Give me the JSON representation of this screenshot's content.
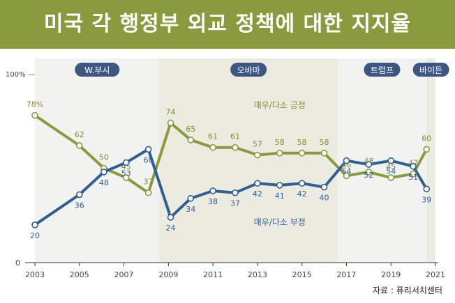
{
  "title": "미국 각 행정부 외교 정책에 대한 지지율",
  "source": "자료 : 퓨리서치센터",
  "colors": {
    "title_bg": "#8a9a3e",
    "approve": "#8a9a3e",
    "approve_label": "#8b8a3a",
    "disapprove": "#2f5f94",
    "disapprove_label": "#2f5f94",
    "admin_badge": "#3f5683",
    "band_light": "#f2f2f0",
    "band_olive": "#ecebdf",
    "axis": "#333333"
  },
  "chart_data": {
    "type": "line",
    "ylim": [
      0,
      100
    ],
    "xlim": [
      2003,
      2021
    ],
    "y_ticks": [
      {
        "value": 0,
        "label": "0"
      },
      {
        "value": 100,
        "label": "100% —"
      }
    ],
    "x_ticks": [
      {
        "value": 2003,
        "label": "2003"
      },
      {
        "value": 2005,
        "label": "2005"
      },
      {
        "value": 2007,
        "label": "2007"
      },
      {
        "value": 2009,
        "label": "2009"
      },
      {
        "value": 2011,
        "label": "2011"
      },
      {
        "value": 2013,
        "label": "2013"
      },
      {
        "value": 2015,
        "label": "2015"
      },
      {
        "value": 2017,
        "label": "2017"
      },
      {
        "value": 2019,
        "label": "2019"
      },
      {
        "value": 2021,
        "label": "2021"
      }
    ],
    "administrations": [
      {
        "name": "W.부시",
        "start": 2003,
        "end": 2008.6,
        "shade": "light"
      },
      {
        "name": "오바마",
        "start": 2008.6,
        "end": 2016.6,
        "shade": "olive"
      },
      {
        "name": "트럼프",
        "start": 2016.6,
        "end": 2020.6,
        "shade": "light"
      },
      {
        "name": "바이든",
        "start": 2020.6,
        "end": 2021,
        "shade": "olive"
      }
    ],
    "series": [
      {
        "key": "approve",
        "name": "매우/다소 긍정",
        "label_side": "above",
        "points": [
          {
            "x": 2003.0,
            "y": 78,
            "label": "78%"
          },
          {
            "x": 2005.0,
            "y": 62,
            "label": "62"
          },
          {
            "x": 2006.1,
            "y": 50,
            "label": "50"
          },
          {
            "x": 2007.1,
            "y": 45,
            "label": "45"
          },
          {
            "x": 2008.1,
            "y": 37,
            "label": "37"
          },
          {
            "x": 2009.1,
            "y": 74,
            "label": "74"
          },
          {
            "x": 2010.0,
            "y": 65,
            "label": "65"
          },
          {
            "x": 2011.0,
            "y": 61,
            "label": "61"
          },
          {
            "x": 2012.0,
            "y": 61,
            "label": "61"
          },
          {
            "x": 2013.0,
            "y": 57,
            "label": "57"
          },
          {
            "x": 2014.0,
            "y": 58,
            "label": "58"
          },
          {
            "x": 2015.0,
            "y": 58,
            "label": "58"
          },
          {
            "x": 2016.0,
            "y": 58,
            "label": "58"
          },
          {
            "x": 2017.0,
            "y": 46,
            "label": "46"
          },
          {
            "x": 2018.0,
            "y": 48,
            "label": "48"
          },
          {
            "x": 2019.0,
            "y": 45,
            "label": "45"
          },
          {
            "x": 2020.0,
            "y": 47,
            "label": "47"
          },
          {
            "x": 2020.6,
            "y": 60,
            "label": "60"
          }
        ]
      },
      {
        "key": "disapprove",
        "name": "매우/다소 부정",
        "label_side": "below",
        "points": [
          {
            "x": 2003.0,
            "y": 20,
            "label": "20"
          },
          {
            "x": 2005.0,
            "y": 36,
            "label": "36"
          },
          {
            "x": 2006.1,
            "y": 48,
            "label": "48"
          },
          {
            "x": 2007.1,
            "y": 53,
            "label": "53"
          },
          {
            "x": 2008.1,
            "y": 60,
            "label": "60"
          },
          {
            "x": 2009.1,
            "y": 24,
            "label": "24"
          },
          {
            "x": 2010.0,
            "y": 34,
            "label": "34"
          },
          {
            "x": 2011.0,
            "y": 38,
            "label": "38"
          },
          {
            "x": 2012.0,
            "y": 37,
            "label": "37"
          },
          {
            "x": 2013.0,
            "y": 42,
            "label": "42"
          },
          {
            "x": 2014.0,
            "y": 41,
            "label": "41"
          },
          {
            "x": 2015.0,
            "y": 42,
            "label": "42"
          },
          {
            "x": 2016.0,
            "y": 40,
            "label": "40"
          },
          {
            "x": 2017.0,
            "y": 54,
            "label": "54"
          },
          {
            "x": 2018.0,
            "y": 52,
            "label": "52"
          },
          {
            "x": 2019.0,
            "y": 54,
            "label": "54"
          },
          {
            "x": 2020.0,
            "y": 51,
            "label": "51"
          },
          {
            "x": 2020.6,
            "y": 39,
            "label": "39"
          }
        ]
      }
    ]
  }
}
